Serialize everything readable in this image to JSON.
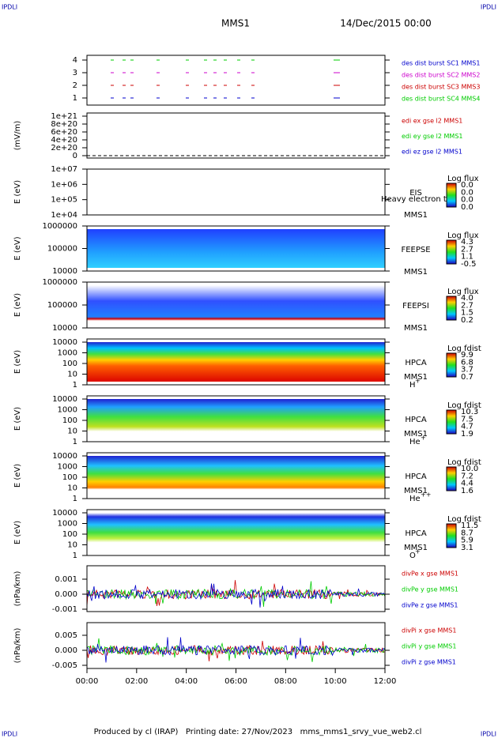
{
  "header": {
    "left_corner": "IPDLI",
    "right_corner": "IPDLI",
    "title": "MMS1",
    "date": "14/Dec/2015 00:00"
  },
  "panels": [
    {
      "yticks": [
        "4",
        "3",
        "2",
        "1"
      ],
      "legend": [
        {
          "text": "des dist burst SC1 MMS1",
          "color": "#0000cc"
        },
        {
          "text": "des dist burst SC2 MMS2",
          "color": "#cc00cc"
        },
        {
          "text": "des dist burst SC3 MMS3",
          "color": "#cc0000"
        },
        {
          "text": "des dist burst SC4 MMS4",
          "color": "#00cc00"
        }
      ]
    },
    {
      "ylabel": "(mV/m)",
      "yticks": [
        "1e+21",
        "8e+20",
        "6e+20",
        "4e+20",
        "2e+20",
        "0"
      ],
      "legend": [
        {
          "text": "edi ex gse l2 MMS1",
          "color": "#cc0000"
        },
        {
          "text": "edi ey gse l2 MMS1",
          "color": "#00cc00"
        },
        {
          "text": "edi ez gse l2 MMS1",
          "color": "#0000cc"
        }
      ]
    },
    {
      "ylabel": "E (eV)",
      "yticks": [
        "1e+07",
        "1e+06",
        "1e+05",
        "1e+04"
      ],
      "labels": [
        "EIS",
        "MMS1"
      ],
      "overlay": "Heavy electron to",
      "colorbar": {
        "title": "Log flux",
        "values": [
          "0.0",
          "0.0",
          "0.0",
          "0.0"
        ]
      }
    },
    {
      "ylabel": "E (eV)",
      "yticks": [
        "1000000",
        "100000",
        "10000"
      ],
      "labels": [
        "FEEPSE",
        "MMS1"
      ],
      "colorbar": {
        "title": "Log flux",
        "values": [
          "4.3",
          "2.7",
          "1.1",
          "-0.5"
        ]
      }
    },
    {
      "ylabel": "E (eV)",
      "yticks": [
        "1000000",
        "100000",
        "10000"
      ],
      "labels": [
        "FEEPSI",
        "MMS1"
      ],
      "colorbar": {
        "title": "Log flux",
        "values": [
          "4.0",
          "2.7",
          "1.5",
          "0.2"
        ]
      }
    },
    {
      "ylabel": "E (eV)",
      "yticks": [
        "10000",
        "1000",
        "100",
        "10",
        "1"
      ],
      "labels": [
        "HPCA",
        "MMS1"
      ],
      "species": "H",
      "charge": "+",
      "colorbar": {
        "title": "Log fdist",
        "values": [
          "9.9",
          "6.8",
          "3.7",
          "0.7"
        ]
      }
    },
    {
      "ylabel": "E (eV)",
      "yticks": [
        "10000",
        "1000",
        "100",
        "10",
        "1"
      ],
      "labels": [
        "HPCA",
        "MMS1"
      ],
      "species": "He",
      "charge": "+",
      "colorbar": {
        "title": "Log fdist",
        "values": [
          "10.3",
          "7.5",
          "4.7",
          "1.9"
        ]
      }
    },
    {
      "ylabel": "E (eV)",
      "yticks": [
        "10000",
        "1000",
        "100",
        "10",
        "1"
      ],
      "labels": [
        "HPCA",
        "MMS1"
      ],
      "species": "He",
      "charge": "++",
      "colorbar": {
        "title": "Log fdist",
        "values": [
          "10.0",
          "7.2",
          "4.4",
          "1.6"
        ]
      }
    },
    {
      "ylabel": "E (eV)",
      "yticks": [
        "10000",
        "1000",
        "100",
        "10",
        "1"
      ],
      "labels": [
        "HPCA",
        "MMS1"
      ],
      "species": "O",
      "charge": "+",
      "colorbar": {
        "title": "Log fdist",
        "values": [
          "11.5",
          "8.7",
          "5.9",
          "3.1"
        ]
      }
    },
    {
      "ylabel": "(nPa/km)",
      "yticks": [
        "0.001",
        "0.000",
        "-0.001"
      ],
      "legend": [
        {
          "text": "divPe x gse MMS1",
          "color": "#cc0000"
        },
        {
          "text": "divPe y gse MMS1",
          "color": "#00cc00"
        },
        {
          "text": "divPe z gse MMS1",
          "color": "#0000cc"
        }
      ]
    },
    {
      "ylabel": "(nPa/km)",
      "yticks": [
        "0.005",
        "0.000",
        "-0.005"
      ],
      "legend": [
        {
          "text": "divPi x gse MMS1",
          "color": "#cc0000"
        },
        {
          "text": "divPi y gse MMS1",
          "color": "#00cc00"
        },
        {
          "text": "divPi z gse MMS1",
          "color": "#0000cc"
        }
      ]
    }
  ],
  "xticks": [
    "00:00",
    "02:00",
    "04:00",
    "06:00",
    "08:00",
    "10:00",
    "12:00"
  ],
  "footer": {
    "left_corner": "IPDLI",
    "right_corner": "IPDLI",
    "text": "Produced by cl (IRAP)   Printing date: 27/Nov/2023   mms_mms1_srvy_vue_web2.cl"
  }
}
